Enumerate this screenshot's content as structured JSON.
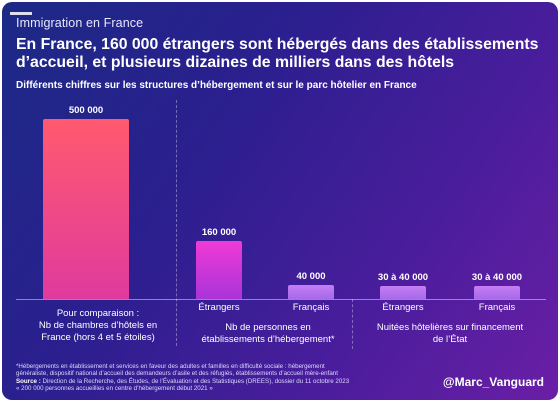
{
  "header": {
    "tag": "Immigration en France",
    "title": "En France, 160 000 étrangers sont hébergés dans des établissements d’accueil, et plusieurs dizaines de milliers dans des hôtels",
    "subtitle": "Différents chiffres sur les structures d’hébergement et sur le parc hôtelier en France"
  },
  "chart_data": {
    "type": "bar",
    "title": "En France, 160 000 étrangers sont hébergés dans des établissements d’accueil, et plusieurs dizaines de milliers dans des hôtels",
    "subtitle": "Différents chiffres sur les structures d’hébergement et sur le parc hôtelier en France",
    "categories": [
      "Pour comparaison : Nb de chambres d’hôtels en France (hors 4 et 5 étoiles)",
      "Étrangers",
      "Français",
      "Étrangers",
      "Français"
    ],
    "values": [
      500000,
      160000,
      40000,
      35000,
      35000
    ],
    "value_labels": [
      "500 000",
      "160 000",
      "40 000",
      "30 à 40 000",
      "30 à 40 000"
    ],
    "groups": [
      {
        "label": "Pour comparaison : Nb de chambres d’hôtels en France (hors 4 et 5 étoiles)",
        "bars": [
          0
        ]
      },
      {
        "label": "Nb de personnes en établissements d’hébergement*",
        "bars": [
          1,
          2
        ]
      },
      {
        "label": "Nuitées hôtelières sur financement de l’État",
        "bars": [
          3,
          4
        ]
      }
    ],
    "ylim": [
      0,
      500000
    ],
    "grid": false,
    "legend": "none",
    "colors": {
      "comparison": "#ff4f6e",
      "etrangers": "#e83ad8",
      "francais": "#b57cf2"
    }
  },
  "labels": {
    "cat_1": "Étrangers",
    "cat_2": "Français",
    "cat_3": "Étrangers",
    "cat_4": "Français",
    "group_0_line1": "Pour comparaison :",
    "group_0_line2": "Nb de chambres d’hôtels en",
    "group_0_line3": "France (hors 4 et 5 étoiles)",
    "group_1_line1": "Nb de personnes en",
    "group_1_line2": "établissements d’hébergement*",
    "group_2_line1": "Nuitées hôtelières sur financement",
    "group_2_line2": "de l’État"
  },
  "footer": {
    "note_1": "*Hébergements en établissement et services en faveur des adultes et familles en difficulté sociale : hébergement",
    "note_2": "généraliste, dispositif national d’accueil des demandeurs d’asile et des réfugiés, établissements d’accueil mère-enfant",
    "source_label": "Source :",
    "source_text": " Direction de la Recherche, des Études, de l’Évaluation et des Statistiques (DREES), dossier du 11 octobre 2023",
    "note_3": "« 200 000 personnes accueillies en centre d’hébergement début 2021 »",
    "handle": "@Marc_Vanguard"
  }
}
